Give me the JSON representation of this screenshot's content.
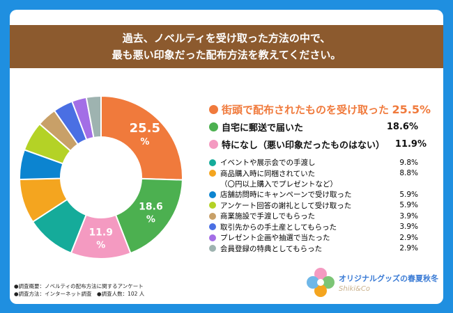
{
  "title": {
    "line1": "過去、ノベルティを受け取った方法の中で、",
    "line2": "最も悪い印象だった配布方法を教えてください。"
  },
  "chart_data": {
    "type": "pie",
    "donut": true,
    "title": "過去、ノベルティを受け取った方法の中で、最も悪い印象だった配布方法を教えてください。",
    "unit": "%",
    "series": [
      {
        "label": "街頭で配布されたものを受け取った",
        "value": 25.5,
        "display": "25.5%",
        "color": "#f07a3c"
      },
      {
        "label": "自宅に郵送で届いた",
        "value": 18.6,
        "display": "18.6%",
        "color": "#4cb050"
      },
      {
        "label": "特になし（悪い印象だったものはない）",
        "value": 11.9,
        "display": "11.9%",
        "color": "#f49ac1"
      },
      {
        "label": "イベントや展示会での手渡し",
        "value": 9.8,
        "display": "9.8%",
        "color": "#15ab9a"
      },
      {
        "label": "商品購入時に同梱されていた",
        "sublabel": "（〇円以上購入でプレゼントなど）",
        "value": 8.8,
        "display": "8.8%",
        "color": "#f4a51f"
      },
      {
        "label": "店舗訪問時にキャンペーンで受け取った",
        "value": 5.9,
        "display": "5.9%",
        "color": "#0c84d0"
      },
      {
        "label": "アンケート回答の謝礼として受け取った",
        "value": 5.9,
        "display": "5.9%",
        "color": "#b4d226"
      },
      {
        "label": "商業施設で手渡しでもらった",
        "value": 3.9,
        "display": "3.9%",
        "color": "#c8a068"
      },
      {
        "label": "取引先からの手土産としてもらった",
        "value": 3.9,
        "display": "3.9%",
        "color": "#4a6fe3"
      },
      {
        "label": "プレゼント企画や抽選で当たった",
        "value": 2.9,
        "display": "2.9%",
        "color": "#a36ee6"
      },
      {
        "label": "会員登録の特典としてもらった",
        "value": 2.9,
        "display": "2.9%",
        "color": "#9eb3b0"
      }
    ],
    "slice_labels": [
      "25.5\n%",
      "18.6\n%",
      "11.9\n%"
    ]
  },
  "notes": {
    "line1": "●調査概要：ノベルティの配布方法に関するアンケート",
    "line2": "●調査方法：インターネット調査　●調査人数：102 人"
  },
  "logo": {
    "title": "オリジナルグッズの春夏秋冬",
    "subtitle": "Shiki&Co"
  }
}
